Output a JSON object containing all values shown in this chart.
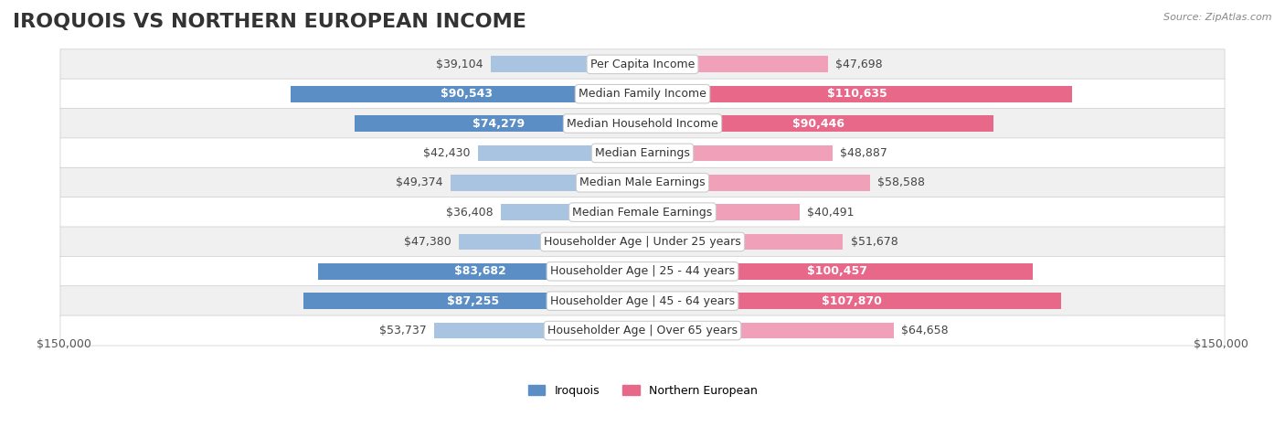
{
  "title": "IROQUOIS VS NORTHERN EUROPEAN INCOME",
  "source": "Source: ZipAtlas.com",
  "categories": [
    "Per Capita Income",
    "Median Family Income",
    "Median Household Income",
    "Median Earnings",
    "Median Male Earnings",
    "Median Female Earnings",
    "Householder Age | Under 25 years",
    "Householder Age | 25 - 44 years",
    "Householder Age | 45 - 64 years",
    "Householder Age | Over 65 years"
  ],
  "iroquois_values": [
    39104,
    90543,
    74279,
    42430,
    49374,
    36408,
    47380,
    83682,
    87255,
    53737
  ],
  "northern_values": [
    47698,
    110635,
    90446,
    48887,
    58588,
    40491,
    51678,
    100457,
    107870,
    64658
  ],
  "iroquois_color_light": "#a8c4e0",
  "iroquois_color_dark": "#5b8ec4",
  "northern_color_light": "#f0a0b8",
  "northern_color_dark": "#e8688a",
  "label_color_dark": "#ffffff",
  "label_color_light": "#444444",
  "max_value": 150000,
  "x_label_left": "$150,000",
  "x_label_right": "$150,000",
  "legend_iroquois": "Iroquois",
  "legend_northern": "Northern European",
  "row_bg_color": "#f0f0f0",
  "row_bg_color2": "#ffffff",
  "title_fontsize": 16,
  "label_fontsize": 9,
  "bar_height": 0.55,
  "dark_threshold": 70000
}
